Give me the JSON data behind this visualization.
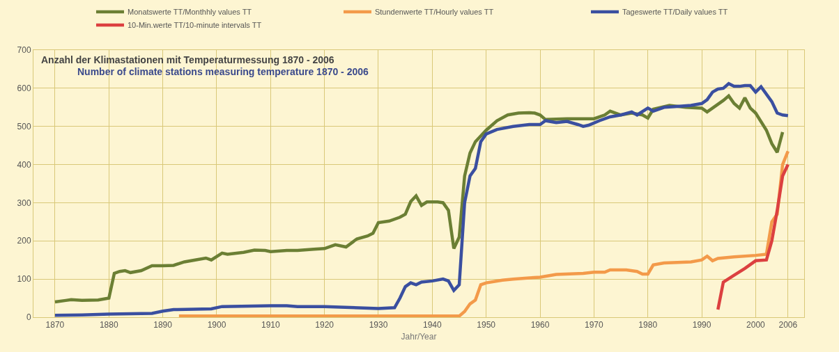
{
  "chart_data": {
    "type": "line",
    "title": "Anzahl der Klimastationen mit Temperaturmessung 1870 - 2006",
    "subtitle": "Number of climate stations measuring temperature 1870 - 2006",
    "xlabel": "Jahr/Year",
    "xlim": [
      1866,
      2009
    ],
    "xticks": [
      1870,
      1880,
      1890,
      1900,
      1910,
      1920,
      1930,
      1940,
      1950,
      1960,
      1970,
      1980,
      1990,
      2000,
      2006
    ],
    "ylim": [
      0,
      700
    ],
    "yticks": [
      0,
      100,
      200,
      300,
      400,
      500,
      600,
      700
    ],
    "grid": true,
    "legend": "top right",
    "marker": "none",
    "line_style": "solid",
    "series": [
      {
        "name": "Monatswerte TT/Monthhly values TT",
        "color": "#6b7f34",
        "x": [
          1870,
          1872,
          1873,
          1875,
          1878,
          1880,
          1881,
          1882,
          1883,
          1884,
          1886,
          1888,
          1890,
          1892,
          1894,
          1896,
          1898,
          1899,
          1901,
          1902,
          1905,
          1907,
          1909,
          1910,
          1913,
          1915,
          1918,
          1920,
          1922,
          1924,
          1926,
          1928,
          1929,
          1930,
          1932,
          1934,
          1935,
          1936,
          1937,
          1938,
          1939,
          1941,
          1942,
          1943,
          1944,
          1945,
          1946,
          1947,
          1948,
          1950,
          1952,
          1954,
          1956,
          1958,
          1959,
          1960,
          1961,
          1965,
          1970,
          1972,
          1973,
          1975,
          1977,
          1979,
          1980,
          1981,
          1984,
          1987,
          1990,
          1991,
          1992,
          1994,
          1995,
          1996,
          1997,
          1998,
          1999,
          2000,
          2002,
          2003,
          2004,
          2005
        ],
        "values": [
          40,
          44,
          46,
          44,
          45,
          50,
          115,
          120,
          122,
          117,
          122,
          135,
          135,
          136,
          145,
          150,
          155,
          150,
          168,
          165,
          170,
          176,
          175,
          172,
          175,
          175,
          178,
          180,
          190,
          184,
          205,
          213,
          220,
          248,
          252,
          262,
          270,
          303,
          318,
          293,
          302,
          302,
          300,
          280,
          180,
          210,
          370,
          430,
          460,
          490,
          515,
          530,
          535,
          536,
          535,
          530,
          518,
          520,
          520,
          530,
          540,
          530,
          535,
          530,
          522,
          545,
          555,
          550,
          548,
          538,
          548,
          568,
          580,
          560,
          548,
          575,
          548,
          535,
          490,
          455,
          432,
          485
        ]
      },
      {
        "name": "Stundenwerte TT/Hourly values TT",
        "color": "#f39a4a",
        "x": [
          1893,
          1945,
          1946,
          1947,
          1948,
          1949,
          1950,
          1953,
          1955,
          1958,
          1960,
          1963,
          1968,
          1970,
          1972,
          1973,
          1976,
          1978,
          1979,
          1980,
          1981,
          1983,
          1988,
          1990,
          1991,
          1992,
          1993,
          1996,
          2000,
          2002,
          2003,
          2004,
          2005,
          2006
        ],
        "values": [
          3,
          3,
          15,
          35,
          45,
          85,
          90,
          97,
          100,
          103,
          105,
          112,
          115,
          118,
          118,
          124,
          124,
          120,
          113,
          113,
          137,
          142,
          145,
          150,
          160,
          148,
          154,
          158,
          162,
          165,
          250,
          270,
          400,
          435
        ]
      },
      {
        "name": "Tageswerte TT/Daily values TT",
        "color": "#3a4fa0",
        "x": [
          1870,
          1875,
          1880,
          1888,
          1890,
          1892,
          1899,
          1901,
          1910,
          1913,
          1915,
          1920,
          1930,
          1933,
          1934,
          1935,
          1936,
          1937,
          1938,
          1940,
          1942,
          1943,
          1944,
          1945,
          1946,
          1947,
          1948,
          1949,
          1950,
          1952,
          1955,
          1958,
          1960,
          1961,
          1963,
          1965,
          1967,
          1968,
          1969,
          1971,
          1973,
          1975,
          1977,
          1978,
          1980,
          1981,
          1983,
          1985,
          1988,
          1990,
          1991,
          1992,
          1993,
          1994,
          1995,
          1996,
          1997,
          1998,
          1999,
          2000,
          2001,
          2003,
          2004,
          2005,
          2006
        ],
        "values": [
          5,
          6,
          8,
          10,
          16,
          20,
          22,
          28,
          30,
          30,
          28,
          28,
          23,
          25,
          50,
          80,
          90,
          85,
          92,
          95,
          100,
          95,
          70,
          85,
          300,
          370,
          390,
          460,
          480,
          492,
          500,
          505,
          505,
          515,
          510,
          513,
          505,
          500,
          503,
          515,
          525,
          530,
          538,
          530,
          548,
          540,
          550,
          552,
          555,
          560,
          570,
          590,
          598,
          600,
          612,
          605,
          605,
          607,
          607,
          590,
          604,
          565,
          535,
          530,
          528
        ]
      },
      {
        "name": "10-Min.werte TT/10-minute intervals TT",
        "color": "#dc4040",
        "x": [
          1993,
          1994,
          1996,
          1998,
          2000,
          2002,
          2003,
          2004,
          2005,
          2006
        ],
        "values": [
          20,
          92,
          110,
          128,
          148,
          150,
          200,
          280,
          370,
          400
        ]
      }
    ]
  }
}
